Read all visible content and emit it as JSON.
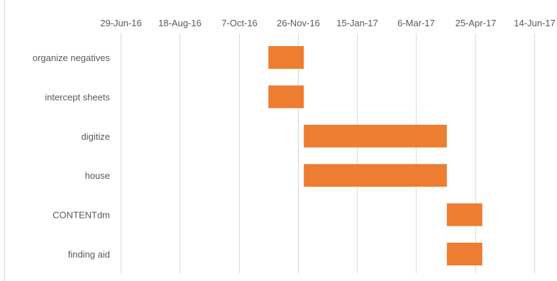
{
  "chart_data": {
    "type": "bar",
    "orientation": "horizontal",
    "subtype": "gantt",
    "title": "",
    "xlabel": "",
    "ylabel": "",
    "x_tick_labels": [
      "29-Jun-16",
      "18-Aug-16",
      "7-Oct-16",
      "26-Nov-16",
      "15-Jan-17",
      "6-Mar-17",
      "25-Apr-17",
      "14-Jun-17"
    ],
    "x_ticks": [
      "2016-06-29",
      "2016-08-18",
      "2016-10-07",
      "2016-11-26",
      "2017-01-15",
      "2017-03-06",
      "2017-04-25",
      "2017-06-14"
    ],
    "xlim": [
      "2016-06-29",
      "2017-06-14"
    ],
    "axis_position": "top",
    "grid": "vertical",
    "legend": "none",
    "bar_color": "#ED7D31",
    "categories": [
      "organize negatives",
      "intercept sheets",
      "digitize",
      "house",
      "CONTENTdm",
      "finding aid"
    ],
    "tasks": [
      {
        "name": "organize negatives",
        "start": "2016-11-01",
        "end": "2016-12-01"
      },
      {
        "name": "intercept sheets",
        "start": "2016-11-01",
        "end": "2016-12-01"
      },
      {
        "name": "digitize",
        "start": "2016-12-01",
        "end": "2017-04-01"
      },
      {
        "name": "house",
        "start": "2016-12-01",
        "end": "2017-04-01"
      },
      {
        "name": "CONTENTdm",
        "start": "2017-04-01",
        "end": "2017-05-01"
      },
      {
        "name": "finding aid",
        "start": "2017-04-01",
        "end": "2017-05-01"
      }
    ]
  }
}
